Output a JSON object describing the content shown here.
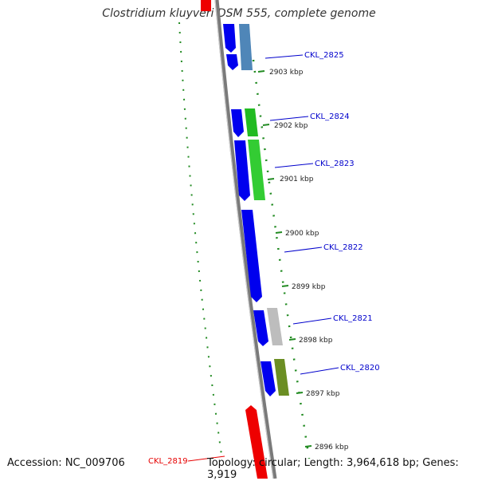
{
  "title": "Clostridium kluyveri DSM 555, complete genome",
  "accession": "Accession: NC_009706",
  "summary": "Topology: circular; Length: 3,964,618 bp; Genes: 3,919",
  "colors": {
    "backbone": "#7a7a7a",
    "forward_cds": "#0000ee",
    "reverse_cds": "#ee0000",
    "ticks": "#228b22",
    "label": "#0000cc",
    "label_red": "#e60000"
  },
  "ticks": [
    "2903 kbp",
    "2902 kbp",
    "2901 kbp",
    "2900 kbp",
    "2899 kbp",
    "2898 kbp",
    "2897 kbp",
    "2896 kbp"
  ],
  "genes": [
    {
      "label": "CKL_2825",
      "color": "#0000cc"
    },
    {
      "label": "CKL_2824",
      "color": "#0000cc"
    },
    {
      "label": "CKL_2823",
      "color": "#0000cc"
    },
    {
      "label": "CKL_2822",
      "color": "#0000cc"
    },
    {
      "label": "CKL_2821",
      "color": "#0000cc"
    },
    {
      "label": "CKL_2820",
      "color": "#0000cc"
    },
    {
      "label": "CKL_2819",
      "color": "#e60000"
    }
  ]
}
